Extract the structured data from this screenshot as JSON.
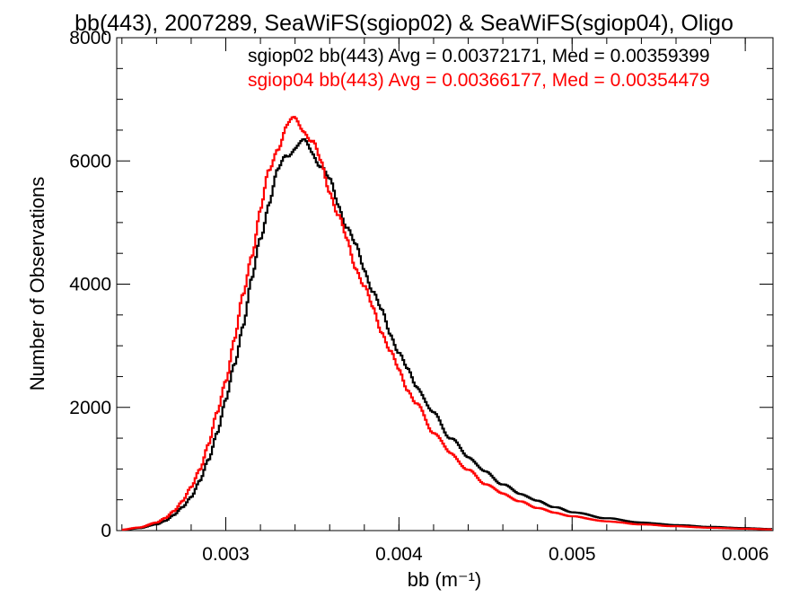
{
  "chart_data": {
    "type": "line",
    "title": "bb(443), 2007289, SeaWiFS(sgiop02) & SeaWiFS(sgiop04), Oligo",
    "xlabel": "bb (m⁻¹)",
    "ylabel": "Number of Observations",
    "xlim": [
      0.00237,
      0.00616
    ],
    "ylim": [
      0,
      8000
    ],
    "x_ticks": [
      {
        "value": 0.003,
        "label": "0.003"
      },
      {
        "value": 0.004,
        "label": "0.004"
      },
      {
        "value": 0.005,
        "label": "0.005"
      },
      {
        "value": 0.006,
        "label": "0.006"
      }
    ],
    "y_ticks": [
      {
        "value": 0,
        "label": "0"
      },
      {
        "value": 2000,
        "label": "2000"
      },
      {
        "value": 4000,
        "label": "4000"
      },
      {
        "value": 6000,
        "label": "6000"
      },
      {
        "value": 8000,
        "label": "8000"
      }
    ],
    "grid": false,
    "step": true,
    "legend_placement": "top-right",
    "annotations": [
      {
        "text": "sgiop02 bb(443) Avg = 0.00372171, Med = 0.00359399",
        "color": "#000000"
      },
      {
        "text": "sgiop04 bb(443) Avg = 0.00366177, Med = 0.00354479",
        "color": "#ff0000"
      }
    ],
    "series": [
      {
        "color": "#000000",
        "x": [
          0.0024,
          0.0025,
          0.0026,
          0.00265,
          0.0027,
          0.00275,
          0.0028,
          0.00285,
          0.0029,
          0.00295,
          0.003,
          0.00305,
          0.0031,
          0.00315,
          0.0032,
          0.00325,
          0.0033,
          0.00335,
          0.0034,
          0.00345,
          0.0035,
          0.00355,
          0.0036,
          0.00365,
          0.0037,
          0.00375,
          0.0038,
          0.00385,
          0.0039,
          0.00395,
          0.004,
          0.00405,
          0.0041,
          0.0042,
          0.0043,
          0.0044,
          0.0045,
          0.0046,
          0.0047,
          0.0048,
          0.0049,
          0.005,
          0.0052,
          0.0054,
          0.0056,
          0.0058,
          0.006,
          0.00615
        ],
        "y": [
          10,
          40,
          100,
          160,
          250,
          380,
          550,
          800,
          1150,
          1600,
          2100,
          2700,
          3350,
          4050,
          4750,
          5350,
          5800,
          6100,
          6250,
          6280,
          6150,
          5950,
          5650,
          5300,
          4950,
          4600,
          4250,
          3900,
          3550,
          3200,
          2900,
          2600,
          2350,
          1900,
          1500,
          1200,
          950,
          750,
          600,
          480,
          380,
          300,
          200,
          130,
          90,
          60,
          40,
          25
        ]
      },
      {
        "color": "#ff0000",
        "x": [
          0.0024,
          0.0025,
          0.0026,
          0.00265,
          0.0027,
          0.00275,
          0.0028,
          0.00285,
          0.0029,
          0.00295,
          0.003,
          0.00305,
          0.0031,
          0.00315,
          0.0032,
          0.00325,
          0.0033,
          0.00335,
          0.0034,
          0.00345,
          0.0035,
          0.00355,
          0.0036,
          0.00365,
          0.0037,
          0.00375,
          0.0038,
          0.00385,
          0.0039,
          0.00395,
          0.004,
          0.00405,
          0.0041,
          0.0042,
          0.0043,
          0.0044,
          0.0045,
          0.0046,
          0.0047,
          0.0048,
          0.0049,
          0.005,
          0.0052,
          0.0054,
          0.0056,
          0.0058,
          0.006,
          0.00615
        ],
        "y": [
          15,
          50,
          130,
          200,
          320,
          480,
          700,
          1000,
          1400,
          1900,
          2450,
          3100,
          3800,
          4500,
          5200,
          5800,
          6250,
          6550,
          6650,
          6550,
          6300,
          5950,
          5550,
          5100,
          4700,
          4300,
          3950,
          3600,
          3250,
          2900,
          2600,
          2300,
          2050,
          1600,
          1250,
          980,
          760,
          600,
          470,
          370,
          290,
          230,
          150,
          100,
          70,
          45,
          30,
          20
        ]
      }
    ]
  }
}
